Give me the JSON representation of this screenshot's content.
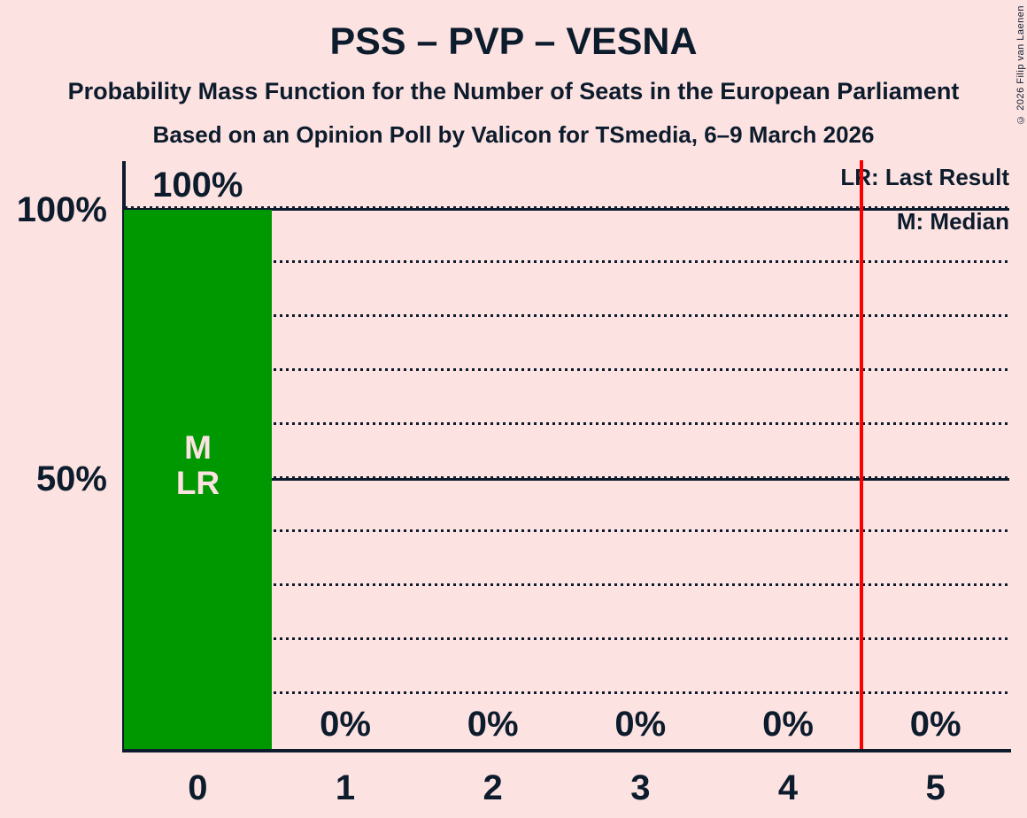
{
  "header": {
    "title": "PSS – PVP – VESNA",
    "subtitle": "Probability Mass Function for the Number of Seats in the European Parliament",
    "source": "Based on an Opinion Poll by Valicon for TSmedia, 6–9 March 2026"
  },
  "copyright": "© 2026 Filip van Laenen",
  "legend": {
    "last_result": "LR: Last Result",
    "median": "M: Median"
  },
  "colors": {
    "background": "#fde2e2",
    "text": "#0c1c2c",
    "bar": "#009800",
    "bar_label": "#fde2e2",
    "last_result_line": "#fa0000"
  },
  "chart_data": {
    "type": "bar",
    "title": "PSS – PVP – VESNA",
    "categories": [
      "0",
      "1",
      "2",
      "3",
      "4",
      "5"
    ],
    "values": [
      100,
      0,
      0,
      0,
      0,
      0
    ],
    "value_labels": [
      "100%",
      "0%",
      "0%",
      "0%",
      "0%",
      "0%"
    ],
    "y_ticks": [
      {
        "value": 100,
        "label": "100%"
      },
      {
        "value": 50,
        "label": "50%"
      }
    ],
    "ylim": [
      0,
      100
    ],
    "gridlines_dotted_pct": [
      10,
      20,
      30,
      40,
      50,
      60,
      70,
      80,
      90,
      100
    ],
    "gridlines_solid_pct": [
      50,
      100
    ],
    "grid": "horizontal-only",
    "legend_position": "top-right",
    "median_seats": 0,
    "last_result_seats": 0,
    "bar_annotations": {
      "median_label": "M",
      "last_result_label": "LR"
    },
    "last_result_line_x": 4.5,
    "xlabel": "",
    "ylabel": ""
  }
}
